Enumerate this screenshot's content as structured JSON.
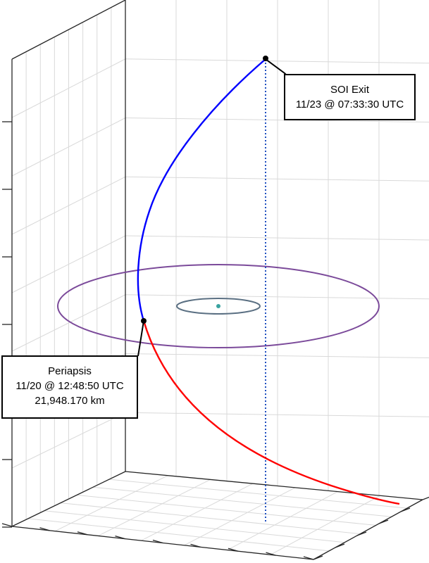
{
  "colors": {
    "background": "#ffffff",
    "grid": "#d9d9d9",
    "axis": "#262626",
    "outbound_trajectory": "#0000ff",
    "inbound_trajectory": "#ff0000",
    "large_orbit": "#7b4a9a",
    "small_orbit": "#5a6f82",
    "central_body": "#3aa3a0",
    "marker": "#000000",
    "vertical_line": "#1f4fc0"
  },
  "annotations": {
    "soi_exit": {
      "title": "SOI Exit",
      "time": "11/23 @ 07:33:30 UTC"
    },
    "periapsis": {
      "title": "Periapsis",
      "time": "11/20 @ 12:48:50 UTC",
      "altitude": "21,948.170 km"
    }
  }
}
